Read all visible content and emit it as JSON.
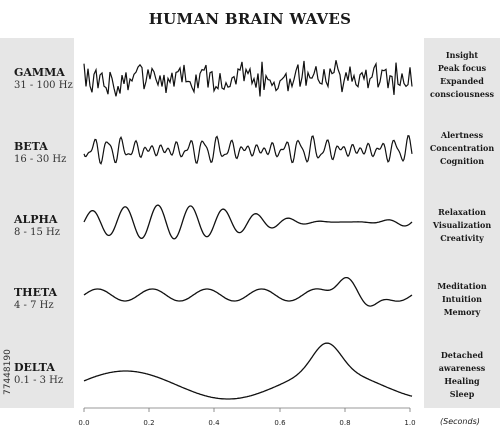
{
  "title": "HUMAN BRAIN WAVES",
  "bands": [
    {
      "name": "GAMMA",
      "freq": "31 - 100 Hz",
      "states": [
        "Insight",
        "Peak focus",
        "Expanded",
        "consciousness"
      ]
    },
    {
      "name": "BETA",
      "freq": "16 - 30 Hz",
      "states": [
        "Alertness",
        "Concentration",
        "Cognition"
      ]
    },
    {
      "name": "ALPHA",
      "freq": "8 - 15 Hz",
      "states": [
        "Relaxation",
        "Visualization",
        "Creativity"
      ]
    },
    {
      "name": "THETA",
      "freq": "4 - 7 Hz",
      "states": [
        "Meditation",
        "Intuition",
        "Memory"
      ]
    },
    {
      "name": "DELTA",
      "freq": "0.1 - 3 Hz",
      "states": [
        "Detached",
        "awareness",
        "Healing",
        "Sleep"
      ]
    }
  ],
  "axis": {
    "ticks": [
      "0.0",
      "0.2",
      "0.4",
      "0.6",
      "0.8",
      "1.0"
    ],
    "unit_label": "(Seconds)"
  },
  "watermark": "77448190"
}
